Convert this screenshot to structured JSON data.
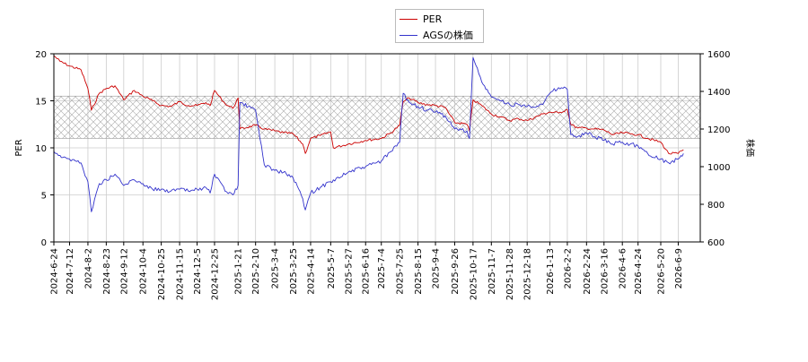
{
  "chart_data": {
    "type": "line",
    "title": "",
    "xlabel": "",
    "ylabel_left": "PER",
    "ylabel_right": "株価",
    "ylim_left": [
      0,
      20
    ],
    "ylim_right": [
      600,
      1600
    ],
    "yticks_left": [
      "0",
      "5",
      "10",
      "15",
      "20"
    ],
    "yticks_right": [
      "600",
      "800",
      "1000",
      "1200",
      "1400",
      "1600"
    ],
    "band": {
      "from": 11,
      "to": 15.5,
      "pattern": "cross-hatch"
    },
    "grid": true,
    "legend_position": "top-center",
    "x_ticks": [
      "2024-6-24",
      "2024-7-12",
      "2024-8-2",
      "2024-8-23",
      "2024-9-12",
      "2024-10-4",
      "2024-10-25",
      "2024-11-15",
      "2024-12-5",
      "2024-12-25",
      "2025-1-21",
      "2025-2-10",
      "2025-3-4",
      "2025-3-25",
      "2025-4-14",
      "2025-5-7",
      "2025-5-27",
      "2025-6-16",
      "2025-7-4",
      "2025-7-25",
      "2025-8-15",
      "2025-9-4",
      "2025-9-26",
      "2025-10-17",
      "2025-11-7",
      "2025-11-28",
      "2025-12-18",
      "2026-1-13",
      "2026-2-2",
      "2026-2-24",
      "2026-3-16",
      "2026-4-6",
      "2026-4-24",
      "2026-5-20",
      "2026-6-9"
    ],
    "series": [
      {
        "name": "PER",
        "color": "#cc0000",
        "axis": "left",
        "x": [
          "2024-6-24",
          "2024-7-1",
          "2024-7-12",
          "2024-7-25",
          "2024-8-2",
          "2024-8-6",
          "2024-8-15",
          "2024-8-23",
          "2024-9-2",
          "2024-9-12",
          "2024-9-24",
          "2024-10-4",
          "2024-10-15",
          "2024-10-25",
          "2024-11-5",
          "2024-11-15",
          "2024-11-25",
          "2024-12-5",
          "2024-12-15",
          "2024-12-20",
          "2024-12-25",
          "2025-1-6",
          "2025-1-15",
          "2025-1-21",
          "2025-1-23",
          "2025-2-10",
          "2025-2-20",
          "2025-3-4",
          "2025-3-14",
          "2025-3-25",
          "2025-4-5",
          "2025-4-8",
          "2025-4-14",
          "2025-4-25",
          "2025-5-7",
          "2025-5-10",
          "2025-5-27",
          "2025-6-16",
          "2025-7-4",
          "2025-7-15",
          "2025-7-25",
          "2025-7-29",
          "2025-8-5",
          "2025-8-15",
          "2025-8-25",
          "2025-9-4",
          "2025-9-15",
          "2025-9-26",
          "2025-10-10",
          "2025-10-13",
          "2025-10-17",
          "2025-10-27",
          "2025-11-7",
          "2025-11-17",
          "2025-11-28",
          "2025-12-8",
          "2025-12-18",
          "2026-1-5",
          "2026-1-13",
          "2026-1-23",
          "2026-2-2",
          "2026-2-6",
          "2026-2-14",
          "2026-2-24",
          "2026-3-5",
          "2026-3-16",
          "2026-3-26",
          "2026-4-6",
          "2026-4-15",
          "2026-4-24",
          "2026-5-5",
          "2026-5-20",
          "2026-5-29",
          "2026-6-9",
          "2026-6-15"
        ],
        "values": [
          19.8,
          19.2,
          18.7,
          18.3,
          16.3,
          14.0,
          15.8,
          16.3,
          16.6,
          15.1,
          16.1,
          15.5,
          15.0,
          14.5,
          14.4,
          14.9,
          14.5,
          14.5,
          14.8,
          14.5,
          16.1,
          14.7,
          14.2,
          15.3,
          12.0,
          12.4,
          12.0,
          11.8,
          11.6,
          11.5,
          10.4,
          9.4,
          11.0,
          11.3,
          11.7,
          10.0,
          10.4,
          10.8,
          11.0,
          11.6,
          12.4,
          14.9,
          15.3,
          14.8,
          14.6,
          14.5,
          14.3,
          12.7,
          12.5,
          11.8,
          15.1,
          14.5,
          13.6,
          13.3,
          12.9,
          13.1,
          12.9,
          13.6,
          13.8,
          13.7,
          14.1,
          12.5,
          12.1,
          12.1,
          12.0,
          11.9,
          11.4,
          11.6,
          11.5,
          11.4,
          11.0,
          10.6,
          9.4,
          9.4,
          9.8
        ]
      },
      {
        "name": "AGSの株価",
        "color": "#3333cc",
        "axis": "right",
        "x": [
          "2024-6-24",
          "2024-7-1",
          "2024-7-12",
          "2024-7-25",
          "2024-8-2",
          "2024-8-6",
          "2024-8-15",
          "2024-8-23",
          "2024-9-2",
          "2024-9-12",
          "2024-9-24",
          "2024-10-4",
          "2024-10-15",
          "2024-10-25",
          "2024-11-5",
          "2024-11-15",
          "2024-11-25",
          "2024-12-5",
          "2024-12-15",
          "2024-12-20",
          "2024-12-25",
          "2025-1-6",
          "2025-1-15",
          "2025-1-21",
          "2025-1-23",
          "2025-2-10",
          "2025-2-20",
          "2025-3-4",
          "2025-3-14",
          "2025-3-25",
          "2025-4-5",
          "2025-4-8",
          "2025-4-14",
          "2025-4-25",
          "2025-5-7",
          "2025-5-10",
          "2025-5-27",
          "2025-6-16",
          "2025-7-4",
          "2025-7-15",
          "2025-7-25",
          "2025-7-29",
          "2025-8-5",
          "2025-8-15",
          "2025-8-25",
          "2025-9-4",
          "2025-9-15",
          "2025-9-26",
          "2025-10-10",
          "2025-10-13",
          "2025-10-17",
          "2025-10-27",
          "2025-11-7",
          "2025-11-17",
          "2025-11-28",
          "2025-12-8",
          "2025-12-18",
          "2026-1-5",
          "2026-1-13",
          "2026-1-23",
          "2026-2-2",
          "2026-2-6",
          "2026-2-14",
          "2026-2-24",
          "2026-3-5",
          "2026-3-16",
          "2026-3-26",
          "2026-4-6",
          "2026-4-15",
          "2026-4-24",
          "2026-5-5",
          "2026-5-20",
          "2026-5-29",
          "2026-6-9",
          "2026-6-15"
        ],
        "values": [
          1080,
          1060,
          1040,
          1020,
          920,
          760,
          910,
          930,
          960,
          900,
          930,
          910,
          880,
          880,
          870,
          880,
          870,
          880,
          890,
          860,
          960,
          870,
          850,
          900,
          1340,
          1300,
          1010,
          980,
          970,
          940,
          830,
          770,
          860,
          890,
          920,
          930,
          970,
          1000,
          1030,
          1080,
          1130,
          1390,
          1340,
          1320,
          1300,
          1290,
          1270,
          1200,
          1190,
          1150,
          1580,
          1450,
          1370,
          1350,
          1330,
          1330,
          1320,
          1330,
          1390,
          1420,
          1410,
          1170,
          1160,
          1180,
          1160,
          1140,
          1120,
          1130,
          1120,
          1110,
          1070,
          1040,
          1020,
          1040,
          1070
        ]
      }
    ]
  }
}
